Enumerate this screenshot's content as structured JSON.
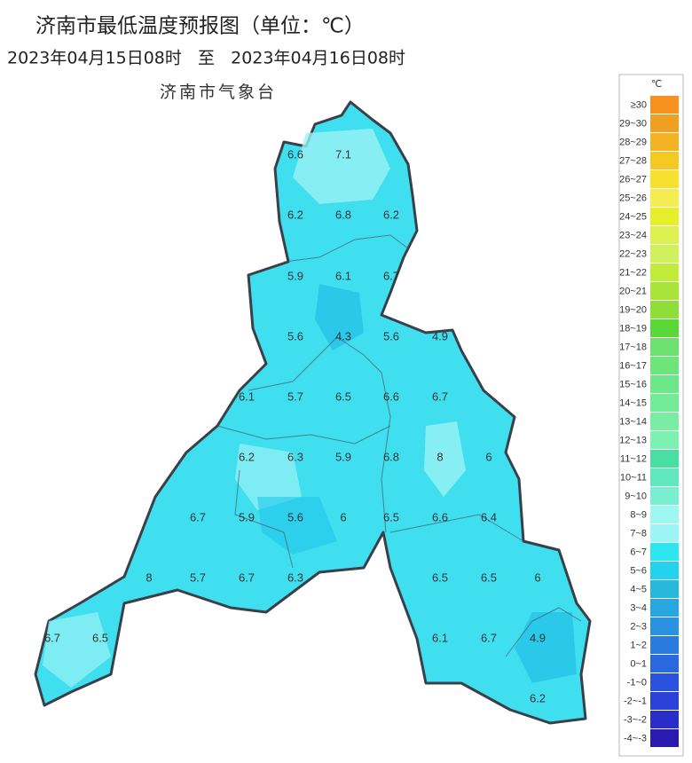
{
  "header": {
    "title": "济南市最低温度预报图（单位：℃）",
    "period": "2023年04月15日08时   至   2023年04月16日08时",
    "issuer": "济南市气象台"
  },
  "legend": {
    "unit": "℃",
    "items": [
      {
        "label": "≥30",
        "color": "#f6901e"
      },
      {
        "label": "29~30",
        "color": "#f0a020"
      },
      {
        "label": "28~29",
        "color": "#f2b424"
      },
      {
        "label": "27~28",
        "color": "#f5c822"
      },
      {
        "label": "26~27",
        "color": "#f8e030"
      },
      {
        "label": "25~26",
        "color": "#f4ec50"
      },
      {
        "label": "24~25",
        "color": "#e6ef2a"
      },
      {
        "label": "23~24",
        "color": "#dcf050"
      },
      {
        "label": "22~23",
        "color": "#d0f060"
      },
      {
        "label": "21~22",
        "color": "#c2ec3a"
      },
      {
        "label": "20~21",
        "color": "#a8e43a"
      },
      {
        "label": "19~20",
        "color": "#8ede3a"
      },
      {
        "label": "18~19",
        "color": "#5ad83a"
      },
      {
        "label": "17~18",
        "color": "#6ee070"
      },
      {
        "label": "16~17",
        "color": "#6ee57a"
      },
      {
        "label": "15~16",
        "color": "#6ce88a"
      },
      {
        "label": "14~15",
        "color": "#72ea96"
      },
      {
        "label": "13~14",
        "color": "#7aeca4"
      },
      {
        "label": "12~13",
        "color": "#7ef0b0"
      },
      {
        "label": "11~12",
        "color": "#48e0a0"
      },
      {
        "label": "10~11",
        "color": "#60e8bc"
      },
      {
        "label": "9~10",
        "color": "#7aeed0"
      },
      {
        "label": "8~9",
        "color": "#9ef6f0"
      },
      {
        "label": "7~8",
        "color": "#9cf4f4"
      },
      {
        "label": "6~7",
        "color": "#2de6f0"
      },
      {
        "label": "5~6",
        "color": "#22d2ee"
      },
      {
        "label": "4~5",
        "color": "#28b8dc"
      },
      {
        "label": "3~4",
        "color": "#28a6e0"
      },
      {
        "label": "2~3",
        "color": "#2a90e0"
      },
      {
        "label": "1~2",
        "color": "#2a7ae0"
      },
      {
        "label": "0~1",
        "color": "#2a68e0"
      },
      {
        "label": "-1~0",
        "color": "#2a52e0"
      },
      {
        "label": "-2~-1",
        "color": "#2a40d8"
      },
      {
        "label": "-3~-2",
        "color": "#2a2ec8"
      },
      {
        "label": "-4~-3",
        "color": "#2a1ab0"
      }
    ]
  },
  "stations": [
    6.6,
    7.1,
    6.2,
    6.8,
    6.2,
    5.9,
    6.1,
    6.7,
    5.6,
    4.3,
    5.6,
    4.9,
    6.1,
    5.7,
    6.5,
    6.6,
    6.7,
    6.2,
    6.3,
    5.9,
    6.8,
    8,
    6,
    6.7,
    5.9,
    5.6,
    6,
    6.5,
    6.6,
    6.4,
    8,
    5.7,
    6.7,
    6.3,
    6.5,
    6.5,
    6,
    6.7,
    6.5,
    6.1,
    6.7,
    4.9,
    6.2
  ]
}
